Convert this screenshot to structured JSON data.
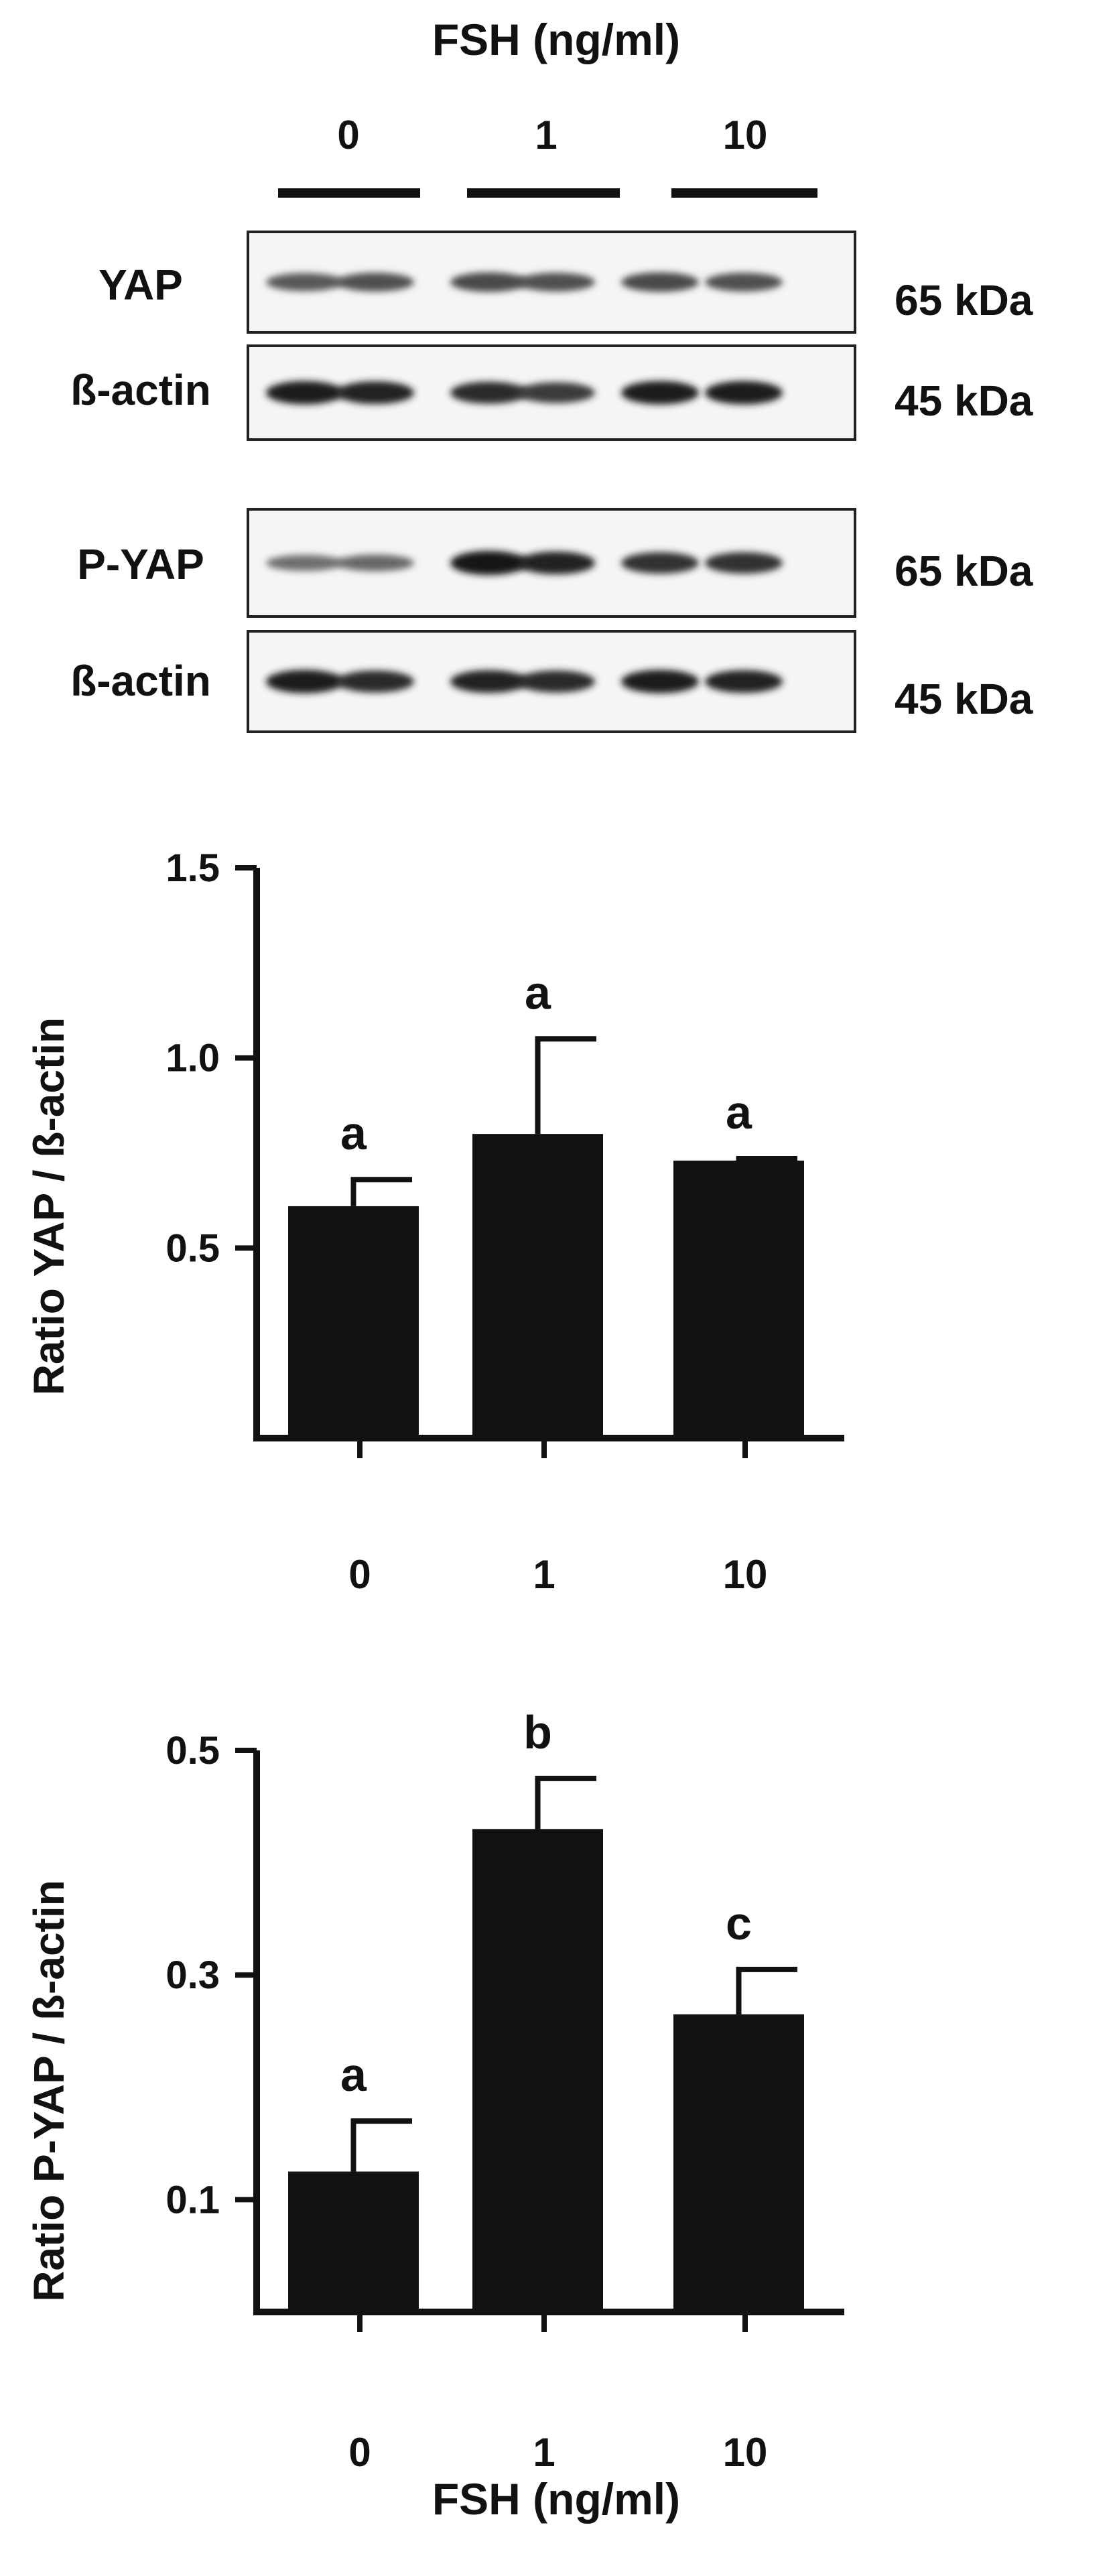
{
  "figure": {
    "header_title": "FSH (ng/ml)",
    "header_doses": [
      "0",
      "1",
      "10"
    ],
    "footer_title": "FSH (ng/ml)"
  },
  "blots": [
    {
      "label": "YAP",
      "size": "65 kDa",
      "bands": [
        {
          "lane": 1,
          "intensity": 0.55
        },
        {
          "lane": 2,
          "intensity": 0.6
        },
        {
          "lane": 3,
          "intensity": 0.65
        },
        {
          "lane": 4,
          "intensity": 0.6
        },
        {
          "lane": 5,
          "intensity": 0.65
        },
        {
          "lane": 6,
          "intensity": 0.6
        }
      ]
    },
    {
      "label": "ß-actin",
      "size": "45 kDa",
      "bands": [
        {
          "lane": 1,
          "intensity": 0.95
        },
        {
          "lane": 2,
          "intensity": 0.9
        },
        {
          "lane": 3,
          "intensity": 0.85
        },
        {
          "lane": 4,
          "intensity": 0.75
        },
        {
          "lane": 5,
          "intensity": 0.95
        },
        {
          "lane": 6,
          "intensity": 0.95
        }
      ]
    },
    {
      "label": "P-YAP",
      "size": "65 kDa",
      "bands": [
        {
          "lane": 1,
          "intensity": 0.4
        },
        {
          "lane": 2,
          "intensity": 0.45
        },
        {
          "lane": 3,
          "intensity": 1.0
        },
        {
          "lane": 4,
          "intensity": 0.9
        },
        {
          "lane": 5,
          "intensity": 0.8
        },
        {
          "lane": 6,
          "intensity": 0.8
        }
      ]
    },
    {
      "label": "ß-actin",
      "size": "45 kDa",
      "bands": [
        {
          "lane": 1,
          "intensity": 0.95
        },
        {
          "lane": 2,
          "intensity": 0.85
        },
        {
          "lane": 3,
          "intensity": 0.9
        },
        {
          "lane": 4,
          "intensity": 0.85
        },
        {
          "lane": 5,
          "intensity": 0.95
        },
        {
          "lane": 6,
          "intensity": 0.9
        }
      ]
    }
  ],
  "chart_data": [
    {
      "type": "bar",
      "categories": [
        "0",
        "1",
        "10"
      ],
      "values": [
        0.61,
        0.8,
        0.73
      ],
      "errors": [
        0.07,
        0.25,
        0.005
      ],
      "significance": [
        "a",
        "a",
        "a"
      ],
      "ylabel": "Ratio YAP / ß-actin",
      "yticks": [
        "1.5",
        "1.0",
        "0.5"
      ],
      "ylim": [
        0,
        1.5
      ],
      "color": "#111111"
    },
    {
      "type": "bar",
      "categories": [
        "0",
        "1",
        "10"
      ],
      "values": [
        0.125,
        0.43,
        0.265
      ],
      "errors": [
        0.045,
        0.045,
        0.04
      ],
      "significance": [
        "a",
        "b",
        "c"
      ],
      "ylabel": "Ratio P-YAP / ß-actin",
      "yticks": [
        "0.5",
        "0.3",
        "0.1"
      ],
      "ylim": [
        0,
        0.5
      ],
      "color": "#111111"
    }
  ]
}
